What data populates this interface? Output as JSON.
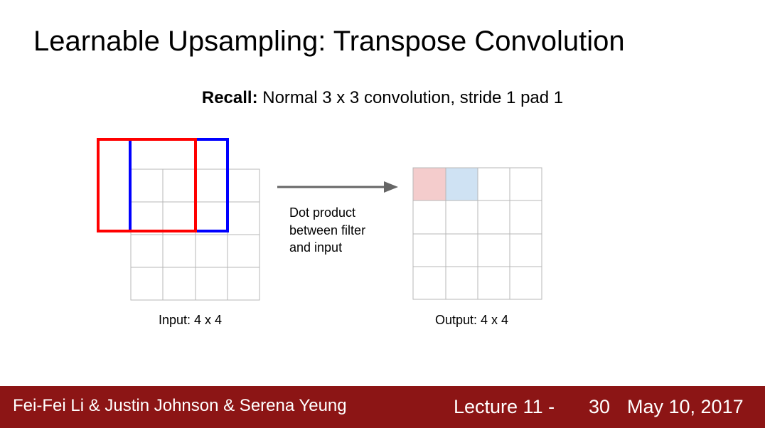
{
  "slide": {
    "title": "Learnable Upsampling: Transpose Convolution",
    "subtitle_bold": "Recall:",
    "subtitle_rest": " Normal 3 x 3 convolution, stride 1 pad 1"
  },
  "diagram": {
    "input_caption": "Input: 4 x 4",
    "output_caption": "Output: 4 x 4",
    "note_lines": [
      "Dot product",
      "between filter",
      "and input"
    ],
    "input_grid": {
      "rows": 4,
      "cols": 4
    },
    "output_grid": {
      "rows": 4,
      "cols": 4
    },
    "output_highlighted_cells": [
      {
        "row": 0,
        "col": 0,
        "fill": "#f4cccc"
      },
      {
        "row": 0,
        "col": 1,
        "fill": "#cfe2f3"
      }
    ],
    "filter_windows": [
      {
        "name": "red",
        "color": "#ff0000"
      },
      {
        "name": "blue",
        "color": "#0000ff"
      }
    ],
    "arrow_icon": "right-arrow-icon"
  },
  "footer": {
    "authors": "Fei-Fei Li & Justin Johnson & Serena Yeung",
    "lecture": "Lecture 11 -",
    "page": "30",
    "date": "May 10, 2017"
  }
}
